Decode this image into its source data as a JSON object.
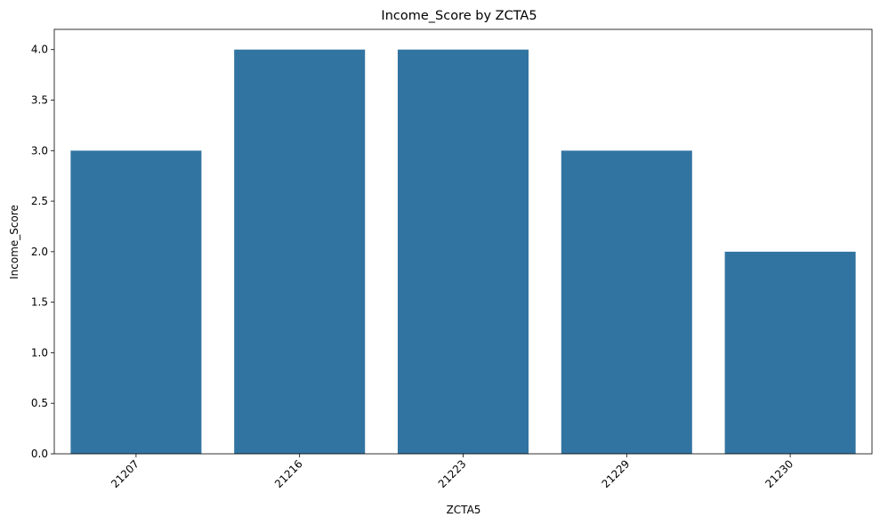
{
  "chart_data": {
    "type": "bar",
    "title": "Income_Score by ZCTA5",
    "xlabel": "ZCTA5",
    "ylabel": "Income_Score",
    "categories": [
      "21207",
      "21216",
      "21223",
      "21229",
      "21230"
    ],
    "values": [
      3.0,
      4.0,
      4.0,
      3.0,
      2.0
    ],
    "ylim": [
      0,
      4.2
    ],
    "yticks": [
      "0.0",
      "0.5",
      "1.0",
      "1.5",
      "2.0",
      "2.5",
      "3.0",
      "3.5",
      "4.0"
    ],
    "xtick_rotation": 45,
    "grid": false,
    "colors": {
      "bar": "#3274a1",
      "axis": "#000000"
    }
  }
}
